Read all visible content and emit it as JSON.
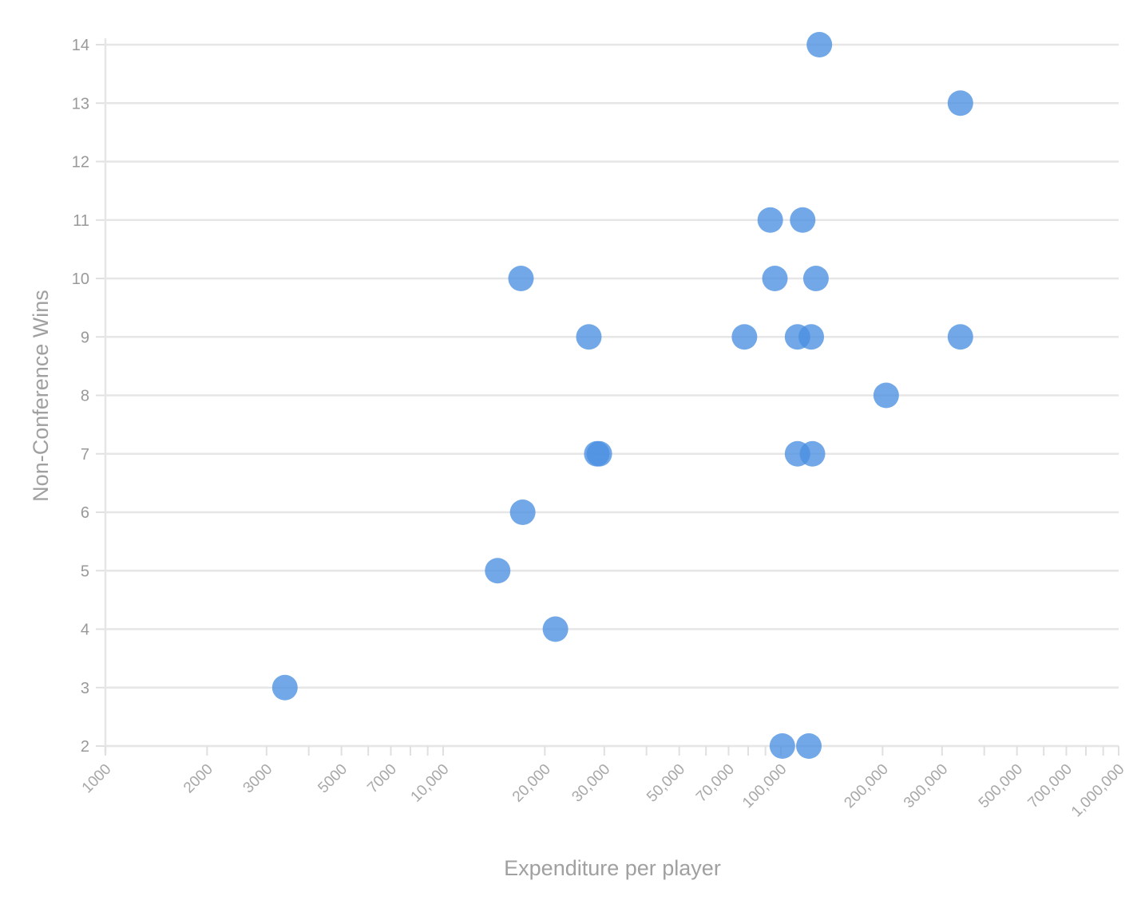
{
  "chart_data": {
    "type": "scatter",
    "xlabel": "Expenditure per player",
    "ylabel": "Non-Conference Wins",
    "x_scale": "log",
    "xlim": [
      1000,
      1000000
    ],
    "ylim": [
      2,
      14
    ],
    "grid": true,
    "x_ticks": [
      1000,
      2000,
      3000,
      4000,
      5000,
      6000,
      7000,
      8000,
      9000,
      10000,
      20000,
      30000,
      40000,
      50000,
      60000,
      70000,
      80000,
      90000,
      100000,
      200000,
      300000,
      400000,
      500000,
      600000,
      700000,
      800000,
      900000,
      1000000
    ],
    "x_tick_labels": [
      {
        "value": 1000,
        "label": "1000"
      },
      {
        "value": 2000,
        "label": "2000"
      },
      {
        "value": 3000,
        "label": "3000"
      },
      {
        "value": 5000,
        "label": "5000"
      },
      {
        "value": 7000,
        "label": "7000"
      },
      {
        "value": 10000,
        "label": "10,000"
      },
      {
        "value": 20000,
        "label": "20,000"
      },
      {
        "value": 30000,
        "label": "30,000"
      },
      {
        "value": 50000,
        "label": "50,000"
      },
      {
        "value": 70000,
        "label": "70,000"
      },
      {
        "value": 100000,
        "label": "100,000"
      },
      {
        "value": 200000,
        "label": "200,000"
      },
      {
        "value": 300000,
        "label": "300,000"
      },
      {
        "value": 500000,
        "label": "500,000"
      },
      {
        "value": 700000,
        "label": "700,000"
      },
      {
        "value": 1000000,
        "label": "1,000,000"
      }
    ],
    "y_ticks": [
      2,
      3,
      4,
      5,
      6,
      7,
      8,
      9,
      10,
      11,
      12,
      13,
      14
    ],
    "point_color": "#4a90e2",
    "points": [
      {
        "x": 130000,
        "y": 14
      },
      {
        "x": 340000,
        "y": 13
      },
      {
        "x": 93000,
        "y": 11
      },
      {
        "x": 116000,
        "y": 11
      },
      {
        "x": 17000,
        "y": 10
      },
      {
        "x": 96000,
        "y": 10
      },
      {
        "x": 127000,
        "y": 10
      },
      {
        "x": 27000,
        "y": 9
      },
      {
        "x": 78000,
        "y": 9
      },
      {
        "x": 112000,
        "y": 9
      },
      {
        "x": 123000,
        "y": 9
      },
      {
        "x": 340000,
        "y": 9
      },
      {
        "x": 205000,
        "y": 8
      },
      {
        "x": 28500,
        "y": 7
      },
      {
        "x": 29000,
        "y": 7
      },
      {
        "x": 112000,
        "y": 7
      },
      {
        "x": 124000,
        "y": 7
      },
      {
        "x": 17200,
        "y": 6
      },
      {
        "x": 14500,
        "y": 5
      },
      {
        "x": 21500,
        "y": 4
      },
      {
        "x": 3400,
        "y": 3
      },
      {
        "x": 101000,
        "y": 2
      },
      {
        "x": 121000,
        "y": 2
      }
    ]
  }
}
